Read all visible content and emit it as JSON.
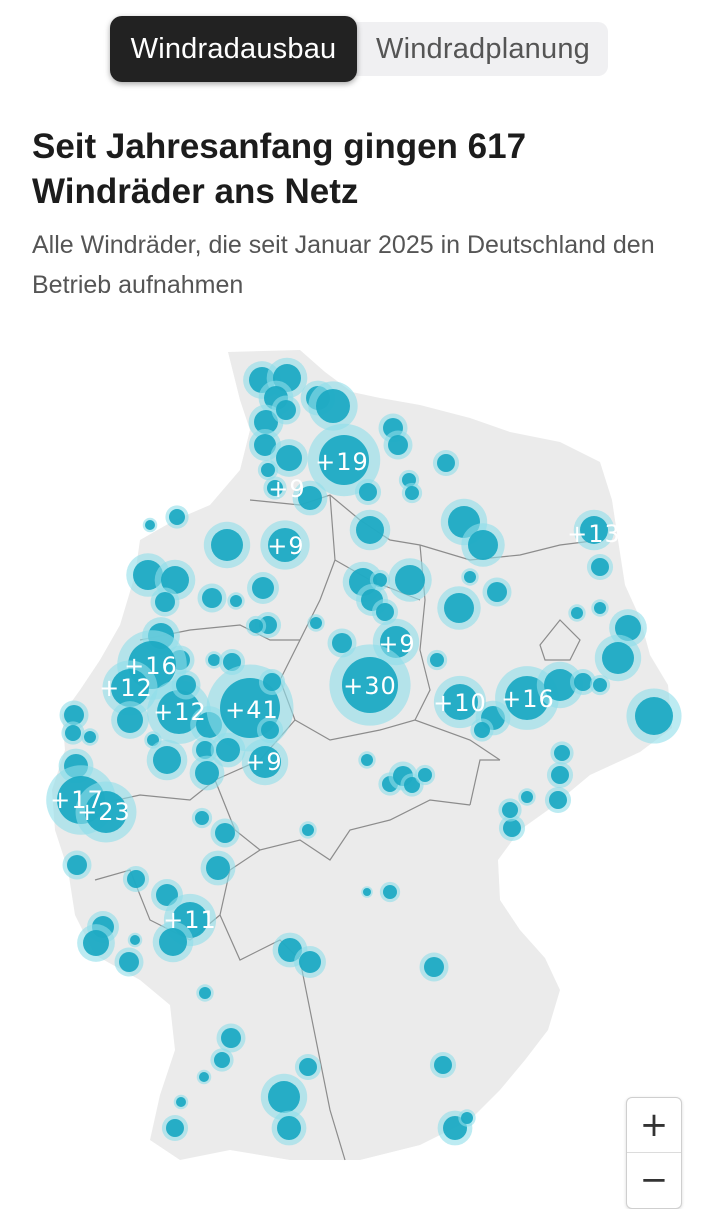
{
  "tabs": [
    {
      "label": "Windradausbau",
      "active": true
    },
    {
      "label": "Windradplanung",
      "active": false
    }
  ],
  "headline": "Seit Jahresanfang gingen 617 Windräder ans Netz",
  "subheadline": "Alle Windräder, die seit Januar 2025 in Deutschland den Betrieb aufnahmen",
  "map": {
    "region": "Deutschland",
    "colors": {
      "land": "#ebebeb",
      "border": "#8c8c8c",
      "marker": "#1aa8c2",
      "marker_halo": "#8fdde9"
    },
    "cluster_labels": [
      "+19",
      "+9",
      "+9",
      "+13",
      "+16",
      "+12",
      "+9",
      "+30",
      "+41",
      "+12",
      "+10",
      "+16",
      "+9",
      "+17",
      "+23",
      "+11"
    ],
    "zoom_controls": {
      "zoom_in": "+",
      "zoom_out": "−"
    }
  }
}
